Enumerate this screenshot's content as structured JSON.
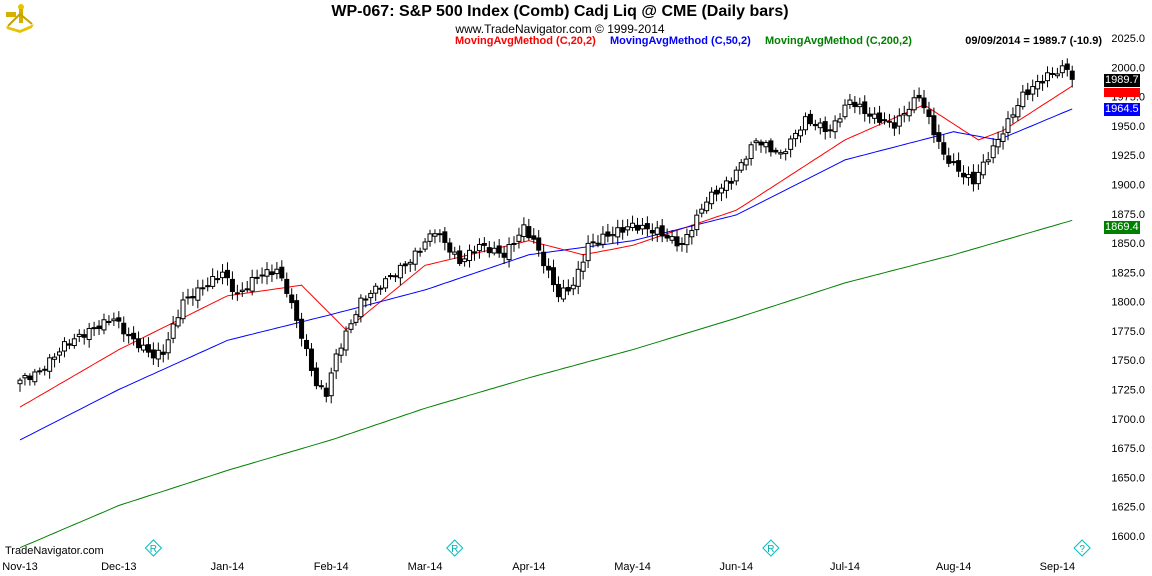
{
  "header": {
    "title": "WP-067:  S&P 500 Index (Comb) Cadj Liq @ CME  (Daily bars)",
    "copyright": "www.TradeNavigator.com © 1999-2014",
    "legend": [
      {
        "label": "MovingAvgMethod (C,20,2)",
        "color": "#ff0000"
      },
      {
        "label": "MovingAvgMethod (C,50,2)",
        "color": "#0000ff"
      },
      {
        "label": "MovingAvgMethod (C,200,2)",
        "color": "#008000"
      }
    ],
    "readout": "09/09/2014 = 1989.7 (-10.9)"
  },
  "footer": {
    "site": "TradeNavigator.com"
  },
  "tags": {
    "last": "1989.7",
    "ma50": "1964.5",
    "ma200": "1869.4"
  },
  "markers": [
    {
      "icon": "R",
      "bar": 27
    },
    {
      "icon": "R",
      "bar": 88
    },
    {
      "icon": "R",
      "bar": 152
    },
    {
      "icon": "?",
      "bar": 215
    }
  ],
  "chart_data": {
    "type": "candlestick",
    "title": "WP-067:  S&P 500 Index (Comb) Cadj Liq @ CME  (Daily bars)",
    "ylim": [
      1600,
      2025
    ],
    "yticks": [
      1600,
      1625,
      1650,
      1675,
      1700,
      1725,
      1750,
      1775,
      1800,
      1825,
      1850,
      1875,
      1900,
      1925,
      1950,
      1975,
      2000,
      2025
    ],
    "xticks": [
      {
        "label": "Nov-13",
        "bar": 0
      },
      {
        "label": "Dec-13",
        "bar": 20
      },
      {
        "label": "Jan-14",
        "bar": 42
      },
      {
        "label": "Feb-14",
        "bar": 63
      },
      {
        "label": "Mar-14",
        "bar": 82
      },
      {
        "label": "Apr-14",
        "bar": 103
      },
      {
        "label": "May-14",
        "bar": 124
      },
      {
        "label": "Jun-14",
        "bar": 145
      },
      {
        "label": "Jul-14",
        "bar": 167
      },
      {
        "label": "Aug-14",
        "bar": 189
      },
      {
        "label": "Sep-14",
        "bar": 210
      }
    ],
    "close_points": [
      [
        0,
        1733
      ],
      [
        4,
        1740
      ],
      [
        9,
        1763
      ],
      [
        14,
        1775
      ],
      [
        19,
        1786
      ],
      [
        22,
        1770
      ],
      [
        27,
        1754
      ],
      [
        29,
        1757
      ],
      [
        33,
        1800
      ],
      [
        37,
        1812
      ],
      [
        41,
        1825
      ],
      [
        44,
        1805
      ],
      [
        48,
        1822
      ],
      [
        52,
        1827
      ],
      [
        54,
        1810
      ],
      [
        57,
        1771
      ],
      [
        60,
        1729
      ],
      [
        62,
        1722
      ],
      [
        64,
        1754
      ],
      [
        69,
        1800
      ],
      [
        74,
        1818
      ],
      [
        79,
        1835
      ],
      [
        84,
        1861
      ],
      [
        89,
        1834
      ],
      [
        93,
        1848
      ],
      [
        98,
        1840
      ],
      [
        102,
        1863
      ],
      [
        104,
        1852
      ],
      [
        109,
        1806
      ],
      [
        112,
        1814
      ],
      [
        115,
        1848
      ],
      [
        119,
        1857
      ],
      [
        124,
        1865
      ],
      [
        129,
        1860
      ],
      [
        134,
        1848
      ],
      [
        139,
        1887
      ],
      [
        144,
        1904
      ],
      [
        149,
        1938
      ],
      [
        154,
        1925
      ],
      [
        159,
        1955
      ],
      [
        164,
        1946
      ],
      [
        168,
        1972
      ],
      [
        172,
        1959
      ],
      [
        177,
        1951
      ],
      [
        182,
        1976
      ],
      [
        187,
        1925
      ],
      [
        191,
        1908
      ],
      [
        193,
        1903
      ],
      [
        198,
        1938
      ],
      [
        203,
        1976
      ],
      [
        208,
        1993
      ],
      [
        212,
        2000
      ],
      [
        213,
        1989.7
      ]
    ],
    "series": [
      {
        "name": "MovingAvgMethod (C,20,2)",
        "color": "#ff0000",
        "points": [
          [
            0,
            1710
          ],
          [
            20,
            1759
          ],
          [
            42,
            1805
          ],
          [
            57,
            1814
          ],
          [
            66,
            1776
          ],
          [
            82,
            1831
          ],
          [
            103,
            1852
          ],
          [
            114,
            1840
          ],
          [
            124,
            1848
          ],
          [
            145,
            1878
          ],
          [
            167,
            1938
          ],
          [
            183,
            1968
          ],
          [
            194,
            1938
          ],
          [
            199,
            1946
          ],
          [
            213,
            1984
          ]
        ]
      },
      {
        "name": "MovingAvgMethod (C,50,2)",
        "color": "#0000ff",
        "points": [
          [
            0,
            1682
          ],
          [
            20,
            1725
          ],
          [
            42,
            1767
          ],
          [
            63,
            1789
          ],
          [
            82,
            1810
          ],
          [
            103,
            1840
          ],
          [
            124,
            1852
          ],
          [
            145,
            1874
          ],
          [
            167,
            1921
          ],
          [
            189,
            1945
          ],
          [
            198,
            1938
          ],
          [
            213,
            1964.5
          ]
        ]
      },
      {
        "name": "MovingAvgMethod (C,200,2)",
        "color": "#008000",
        "points": [
          [
            0,
            1590
          ],
          [
            20,
            1626
          ],
          [
            42,
            1656
          ],
          [
            63,
            1682
          ],
          [
            82,
            1709
          ],
          [
            103,
            1735
          ],
          [
            124,
            1759
          ],
          [
            145,
            1786
          ],
          [
            167,
            1816
          ],
          [
            189,
            1840
          ],
          [
            213,
            1869.4
          ]
        ]
      }
    ]
  }
}
